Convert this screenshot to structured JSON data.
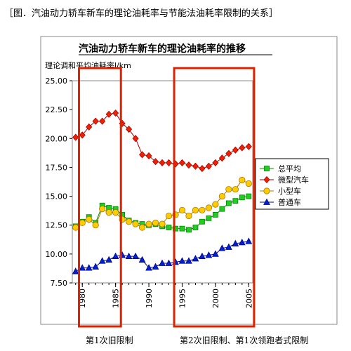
{
  "figure": {
    "caption": "［图．汽油动力轿车新车的理论油耗率与节能法油耗率限制的关系］",
    "annotation_left": "第1次旧限制",
    "annotation_right": "第2次旧限制、第1次领跑者式限制"
  },
  "chart_data": {
    "type": "line",
    "title": "汽油动力轿车新车的理论油耗率的推移",
    "ylabel": "理论调和平均油耗率l/km",
    "xlabel": "",
    "x": [
      1979,
      1980,
      1981,
      1982,
      1983,
      1984,
      1985,
      1986,
      1987,
      1988,
      1989,
      1990,
      1991,
      1992,
      1993,
      1994,
      1995,
      1996,
      1997,
      1998,
      1999,
      2000,
      2001,
      2002,
      2003,
      2004,
      2005
    ],
    "xticks": [
      1980,
      1985,
      1990,
      1995,
      2000,
      2005
    ],
    "xtick_labels": [
      "1980",
      "1985",
      "1990",
      "1995",
      "2000",
      "2005"
    ],
    "xlim": [
      1978.5,
      2005.6
    ],
    "ylim": [
      7.5,
      25.0
    ],
    "yticks": [
      7.5,
      10.0,
      12.5,
      15.0,
      17.5,
      20.0,
      22.5,
      25.0
    ],
    "ytick_labels": [
      "7.50",
      "10.00",
      "12.50",
      "15.00",
      "17.50",
      "20.00",
      "22.50",
      "25.00"
    ],
    "grid": false,
    "legend_position": "right",
    "series": [
      {
        "name": "总平均",
        "marker": "square",
        "color": "#22cc22",
        "stroke": "#008800",
        "values": [
          12.4,
          12.8,
          13.2,
          12.7,
          14.2,
          14.0,
          13.9,
          13.4,
          12.9,
          12.7,
          12.6,
          12.5,
          12.6,
          12.4,
          12.3,
          12.2,
          12.2,
          12.1,
          12.3,
          12.8,
          13.1,
          13.4,
          13.9,
          14.4,
          14.6,
          14.9,
          15.0
        ]
      },
      {
        "name": "微型汽车",
        "marker": "diamond",
        "color": "#ee2200",
        "stroke": "#aa0000",
        "values": [
          20.1,
          20.3,
          21.0,
          21.5,
          21.5,
          22.1,
          22.2,
          21.3,
          20.8,
          20.0,
          18.6,
          18.5,
          18.0,
          17.9,
          17.9,
          17.8,
          17.9,
          17.7,
          17.6,
          17.4,
          17.6,
          17.9,
          18.3,
          18.7,
          19.0,
          19.2,
          19.3
        ]
      },
      {
        "name": "小型车",
        "marker": "circle",
        "color": "#ffcc00",
        "stroke": "#aa7700",
        "values": [
          12.3,
          12.7,
          13.0,
          12.5,
          13.9,
          13.6,
          13.6,
          13.0,
          12.8,
          12.6,
          12.3,
          12.6,
          12.7,
          12.6,
          13.3,
          13.4,
          13.8,
          13.3,
          13.8,
          13.8,
          14.0,
          14.3,
          15.0,
          15.6,
          15.6,
          16.4,
          16.1
        ]
      },
      {
        "name": "普通车",
        "marker": "triangle",
        "color": "#0022cc",
        "stroke": "#000088",
        "values": [
          8.5,
          8.8,
          8.8,
          8.9,
          9.4,
          9.5,
          9.8,
          9.9,
          9.8,
          9.8,
          9.5,
          8.8,
          8.9,
          9.2,
          9.2,
          9.3,
          9.4,
          9.4,
          9.6,
          9.8,
          9.9,
          10.0,
          10.5,
          10.6,
          10.9,
          11.0,
          11.1
        ]
      }
    ],
    "highlight_ranges": [
      {
        "from": 1979.5,
        "to": 1985.8,
        "color": "#dd2200"
      },
      {
        "from": 1993.8,
        "to": 2005.8,
        "color": "#dd2200"
      }
    ]
  }
}
